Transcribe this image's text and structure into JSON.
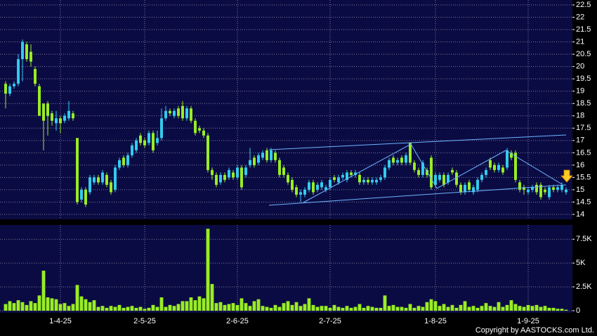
{
  "chart_data": [
    {
      "type": "candlestick",
      "up_color": "#33ccee",
      "down_color": "#99ee22",
      "open": [
        19.3,
        18.9,
        19.2,
        19.3,
        20.3,
        20.9,
        20.6,
        19.9,
        19.2,
        18.5,
        18.5,
        18.1,
        17.7,
        17.9,
        17.8,
        17.9,
        18.1,
        17.1,
        14.6,
        15.0,
        14.9,
        15.3,
        15.5,
        15.3,
        15.6,
        15.3,
        15.0,
        15.9,
        16.3,
        16.0,
        16.4,
        16.6,
        17.2,
        17.0,
        16.9,
        17.3,
        16.9,
        17.1,
        17.9,
        18.2,
        18.0,
        18.3,
        18.4,
        17.9,
        18.3,
        17.8,
        17.5,
        17.4,
        17.2,
        15.8,
        15.6,
        15.3,
        15.6,
        15.5,
        15.7,
        15.5,
        15.9,
        15.6,
        16.0,
        16.3,
        16.1,
        16.3,
        16.6,
        16.2,
        16.5,
        16.2,
        15.9,
        15.6,
        15.4,
        15.1,
        14.8,
        14.8,
        15.0,
        15.3,
        15.0,
        15.1,
        15.0,
        15.1,
        15.5,
        15.3,
        15.5,
        15.4,
        15.7,
        15.6,
        15.6,
        15.3,
        15.4,
        15.3,
        15.3,
        15.4,
        15.5,
        15.9,
        16.3,
        16.1,
        16.3,
        16.1,
        16.9,
        16.1,
        15.8,
        15.6,
        15.8,
        16.3,
        15.2,
        15.4,
        15.6,
        15.3,
        15.8,
        15.7,
        15.2,
        14.9,
        15.3,
        14.9,
        15.0,
        15.4,
        15.6,
        16.2,
        16.0,
        15.8,
        15.9,
        15.9,
        16.5,
        16.5,
        15.3,
        15.1,
        14.9,
        15.0,
        15.2,
        15.2,
        15.0,
        14.7,
        15.1,
        15.0,
        15.0,
        14.9
      ],
      "high": [
        19.4,
        19.3,
        19.4,
        20.5,
        21.1,
        21.0,
        20.9,
        20.0,
        19.3,
        18.5,
        18.6,
        18.2,
        18.2,
        18.0,
        18.1,
        18.6,
        18.2,
        17.1,
        15.1,
        15.1,
        15.6,
        15.6,
        15.6,
        15.8,
        15.7,
        15.4,
        16.0,
        16.3,
        16.4,
        16.5,
        16.9,
        17.1,
        17.3,
        17.1,
        17.4,
        17.4,
        17.4,
        18.3,
        18.4,
        18.3,
        18.3,
        18.4,
        18.6,
        18.4,
        18.4,
        17.9,
        17.6,
        17.5,
        17.3,
        15.9,
        15.7,
        15.7,
        15.7,
        15.9,
        15.8,
        16.0,
        16.0,
        16.0,
        16.7,
        16.4,
        16.5,
        16.6,
        16.7,
        16.7,
        16.6,
        16.3,
        16.0,
        15.7,
        15.5,
        15.2,
        15.0,
        15.1,
        15.4,
        15.4,
        15.3,
        15.4,
        15.2,
        15.5,
        15.6,
        15.6,
        15.7,
        15.8,
        15.8,
        15.8,
        15.7,
        15.5,
        15.5,
        15.5,
        15.5,
        15.6,
        16.0,
        16.3,
        16.4,
        16.3,
        16.4,
        16.5,
        16.9,
        16.2,
        15.9,
        16.2,
        15.9,
        16.4,
        15.7,
        15.7,
        15.7,
        15.7,
        15.9,
        15.8,
        15.3,
        15.3,
        15.4,
        15.2,
        15.5,
        15.7,
        15.9,
        16.3,
        16.1,
        16.1,
        16.0,
        16.7,
        16.6,
        16.6,
        15.4,
        15.2,
        15.1,
        15.2,
        15.3,
        15.3,
        15.1,
        15.2,
        15.2,
        15.2,
        15.3,
        15.1
      ],
      "low": [
        18.3,
        18.8,
        19.1,
        19.2,
        19.4,
        20.2,
        20.0,
        19.2,
        18.0,
        16.6,
        17.2,
        17.6,
        17.4,
        17.3,
        17.7,
        17.8,
        17.8,
        14.4,
        14.5,
        14.3,
        14.8,
        15.2,
        15.2,
        15.2,
        15.1,
        14.8,
        14.9,
        15.8,
        15.9,
        15.9,
        16.3,
        16.5,
        16.8,
        16.7,
        16.8,
        16.5,
        16.8,
        17.0,
        17.8,
        18.0,
        17.9,
        17.9,
        17.8,
        17.8,
        17.7,
        17.2,
        17.3,
        17.1,
        15.7,
        15.4,
        15.1,
        15.2,
        15.3,
        15.4,
        15.4,
        15.4,
        15.0,
        15.5,
        15.9,
        15.9,
        16.0,
        16.2,
        16.1,
        16.1,
        16.1,
        15.5,
        15.5,
        15.2,
        14.9,
        14.7,
        14.5,
        14.7,
        14.9,
        14.8,
        14.9,
        15.0,
        14.9,
        15.0,
        15.3,
        15.2,
        15.4,
        15.3,
        15.5,
        15.5,
        15.2,
        15.2,
        15.2,
        15.2,
        15.2,
        15.3,
        15.4,
        15.8,
        16.0,
        16.0,
        16.0,
        16.0,
        16.0,
        15.7,
        15.5,
        15.5,
        15.5,
        15.0,
        15.1,
        15.3,
        15.1,
        15.2,
        15.6,
        15.1,
        14.8,
        14.8,
        14.9,
        14.8,
        14.9,
        15.3,
        15.5,
        15.8,
        15.7,
        15.7,
        15.6,
        15.8,
        16.2,
        15.3,
        14.9,
        14.8,
        14.8,
        14.9,
        14.8,
        14.6,
        14.8,
        14.6,
        14.9,
        14.9,
        14.9,
        14.8
      ],
      "close": [
        18.9,
        19.2,
        19.3,
        20.3,
        21.0,
        20.3,
        20.2,
        19.3,
        18.0,
        17.8,
        18.0,
        17.8,
        17.9,
        17.7,
        18.0,
        18.2,
        17.9,
        14.5,
        15.0,
        14.4,
        15.5,
        15.5,
        15.3,
        15.7,
        15.2,
        14.9,
        15.9,
        16.2,
        16.0,
        16.4,
        16.8,
        17.0,
        16.9,
        16.8,
        17.3,
        16.6,
        17.1,
        17.9,
        18.2,
        18.1,
        18.2,
        18.0,
        17.9,
        18.3,
        17.8,
        17.3,
        17.4,
        17.2,
        15.8,
        15.6,
        15.2,
        15.6,
        15.4,
        15.8,
        15.5,
        15.9,
        15.1,
        15.9,
        16.2,
        16.0,
        16.4,
        16.5,
        16.2,
        16.6,
        16.2,
        15.6,
        15.6,
        15.3,
        15.0,
        14.8,
        14.9,
        15.0,
        15.3,
        14.9,
        15.2,
        15.3,
        15.1,
        15.4,
        15.4,
        15.5,
        15.6,
        15.7,
        15.6,
        15.7,
        15.3,
        15.4,
        15.3,
        15.4,
        15.4,
        15.5,
        15.9,
        16.2,
        16.1,
        16.2,
        16.1,
        16.4,
        16.1,
        15.8,
        15.6,
        16.1,
        15.6,
        15.1,
        15.6,
        15.6,
        15.2,
        15.6,
        15.7,
        15.2,
        14.9,
        15.2,
        15.0,
        15.1,
        15.4,
        15.6,
        15.8,
        15.9,
        15.8,
        16.0,
        15.7,
        16.6,
        16.3,
        15.4,
        15.0,
        15.0,
        15.0,
        15.1,
        14.9,
        14.7,
        14.9,
        15.1,
        15.0,
        15.1,
        15.2,
        15.0
      ],
      "ylim": [
        13.8,
        22.7
      ],
      "yticks": [
        14,
        14.5,
        15,
        15.5,
        16,
        16.5,
        17,
        17.5,
        18,
        18.5,
        19,
        19.5,
        20,
        20.5,
        21,
        21.5,
        22,
        22.5
      ],
      "grid": true
    },
    {
      "type": "bar",
      "color": "#99ee22",
      "categories": [
        null,
        null,
        null,
        null,
        null,
        null,
        null,
        null,
        null,
        null,
        null,
        null,
        null,
        "1-4-25",
        null,
        null,
        null,
        null,
        null,
        null,
        null,
        null,
        null,
        null,
        null,
        null,
        null,
        null,
        null,
        null,
        null,
        null,
        null,
        "2-5-25",
        null,
        null,
        null,
        null,
        null,
        null,
        null,
        null,
        null,
        null,
        null,
        null,
        null,
        null,
        null,
        null,
        null,
        null,
        null,
        null,
        null,
        "2-6-25",
        null,
        null,
        null,
        null,
        null,
        null,
        null,
        null,
        null,
        null,
        null,
        null,
        null,
        null,
        null,
        null,
        null,
        null,
        null,
        null,
        null,
        "2-7-25",
        null,
        null,
        null,
        null,
        null,
        null,
        null,
        null,
        null,
        null,
        null,
        null,
        null,
        null,
        null,
        null,
        null,
        null,
        null,
        null,
        null,
        null,
        null,
        null,
        "1-8-25",
        null,
        null,
        null,
        null,
        null,
        null,
        null,
        null,
        null,
        null,
        null,
        null,
        null,
        null,
        null,
        null,
        null,
        null,
        null,
        null,
        null,
        "1-9-25",
        null,
        null,
        null,
        null,
        null,
        null,
        null,
        null,
        null
      ],
      "values": [
        700,
        1000,
        800,
        1100,
        900,
        600,
        1000,
        800,
        1600,
        4200,
        1400,
        1300,
        1200,
        700,
        800,
        500,
        700,
        2700,
        1500,
        1200,
        900,
        1100,
        400,
        500,
        300,
        500,
        400,
        600,
        300,
        400,
        500,
        300,
        400,
        200,
        300,
        600,
        400,
        1400,
        400,
        600,
        500,
        700,
        1000,
        1000,
        1400,
        1100,
        1500,
        1300,
        8600,
        2800,
        800,
        900,
        600,
        700,
        800,
        600,
        1300,
        800,
        500,
        1000,
        1200,
        500,
        400,
        300,
        600,
        400,
        800,
        1000,
        600,
        900,
        500,
        700,
        1300,
        600,
        400,
        500,
        500,
        300,
        600,
        400,
        300,
        500,
        300,
        400,
        700,
        300,
        500,
        400,
        300,
        300,
        1600,
        500,
        600,
        400,
        400,
        300,
        700,
        300,
        500,
        400,
        900,
        1200,
        1000,
        500,
        700,
        400,
        600,
        300,
        600,
        1000,
        400,
        500,
        300,
        500,
        800,
        500,
        400,
        900,
        400,
        600,
        1100,
        700,
        500,
        400,
        600,
        500,
        600,
        400,
        500,
        300,
        300,
        200,
        200,
        100
      ],
      "ylim": [
        0,
        9000
      ],
      "yticks": [
        0,
        {
          "value": 2500,
          "label": "2.5K"
        },
        {
          "value": 5000,
          "label": "5K"
        },
        {
          "value": 7500,
          "label": "7.5K"
        }
      ],
      "grid": true
    }
  ],
  "copyright": "Copyright by AASTOCKS.com Ltd."
}
